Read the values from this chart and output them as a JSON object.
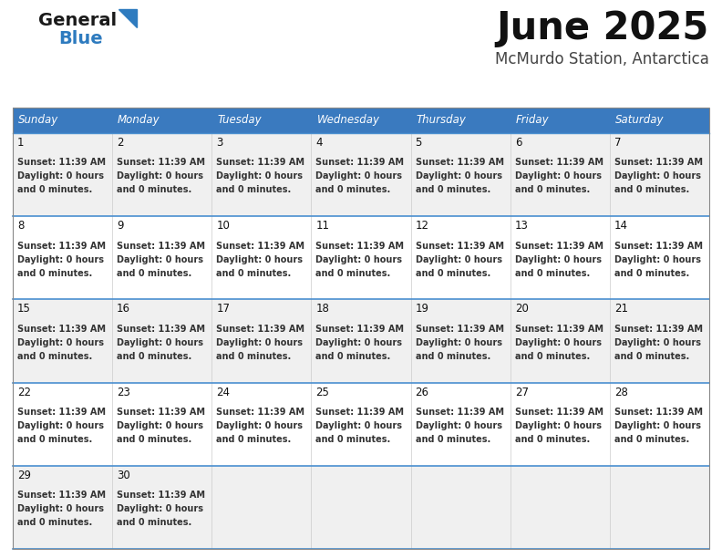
{
  "title": "June 2025",
  "subtitle": "McMurdo Station, Antarctica",
  "days_of_week": [
    "Sunday",
    "Monday",
    "Tuesday",
    "Wednesday",
    "Thursday",
    "Friday",
    "Saturday"
  ],
  "header_bg": "#3a7abf",
  "header_text": "#ffffff",
  "cell_bg_odd": "#f0f0f0",
  "cell_bg_even": "#ffffff",
  "border_color": "#aaaaaa",
  "row_sep_color": "#4a8fd0",
  "day_num_color": "#111111",
  "info_text_color": "#333333",
  "title_color": "#111111",
  "subtitle_color": "#444444",
  "logo_general_color": "#1a1a1a",
  "logo_blue_color": "#2e7bbf",
  "sunset_time": "11:39 AM",
  "daylight_hours": 0,
  "daylight_minutes": 0,
  "figsize": [
    7.92,
    6.12
  ],
  "dpi": 100,
  "weeks": [
    [
      1,
      2,
      3,
      4,
      5,
      6,
      7
    ],
    [
      8,
      9,
      10,
      11,
      12,
      13,
      14
    ],
    [
      15,
      16,
      17,
      18,
      19,
      20,
      21
    ],
    [
      22,
      23,
      24,
      25,
      26,
      27,
      28
    ],
    [
      29,
      30,
      0,
      0,
      0,
      0,
      0
    ]
  ]
}
